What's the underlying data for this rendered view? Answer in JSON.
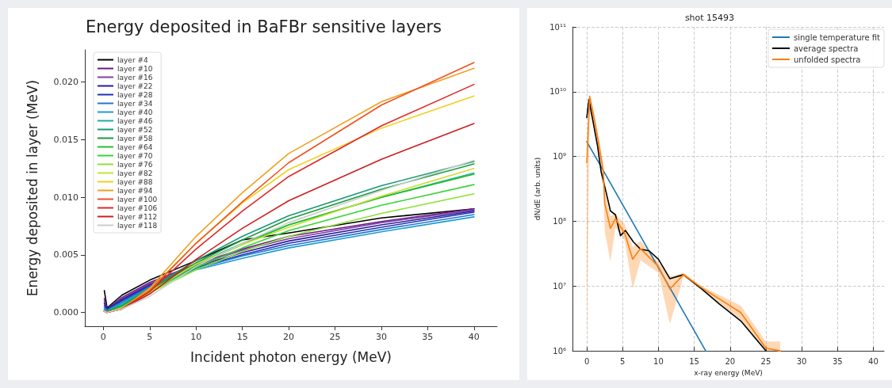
{
  "chart_data": [
    {
      "type": "line",
      "title": "Energy deposited in BaFBr sensitive layers",
      "xlabel": "Incident photon energy (MeV)",
      "ylabel": "Energy deposited in layer (MeV)",
      "legend": "top left",
      "marker": "none",
      "xlim": [
        -2,
        42.5
      ],
      "xticks": [
        0,
        5,
        10,
        15,
        20,
        25,
        30,
        35,
        40
      ],
      "ylim": [
        -0.0012,
        0.0228
      ],
      "yticks": [
        {
          "value": 0,
          "label": "0.000"
        },
        {
          "value": 0.005,
          "label": "0.005"
        },
        {
          "value": 0.01,
          "label": "0.010"
        },
        {
          "value": 0.015,
          "label": "0.015"
        },
        {
          "value": 0.02,
          "label": "0.020"
        }
      ],
      "x": [
        0.1,
        0.4,
        2,
        5,
        10,
        15,
        20,
        30,
        40
      ],
      "series": [
        {
          "name": "layer #4",
          "color": "#000000",
          "values": [
            0.0019,
            0.0004,
            0.0015,
            0.0028,
            0.0045,
            0.0063,
            0.0069,
            0.0082,
            0.009
          ]
        },
        {
          "name": "layer #10",
          "color": "#6a1b86",
          "values": [
            0.0012,
            0.0003,
            0.0013,
            0.0026,
            0.0042,
            0.0055,
            0.0066,
            0.0079,
            0.009
          ]
        },
        {
          "name": "layer #16",
          "color": "#8040a8",
          "values": [
            0.001,
            0.0003,
            0.0012,
            0.0025,
            0.0041,
            0.0054,
            0.0064,
            0.0078,
            0.0089
          ]
        },
        {
          "name": "layer #22",
          "color": "#2a1c98",
          "values": [
            0.0008,
            0.0003,
            0.0011,
            0.0024,
            0.004,
            0.0052,
            0.0062,
            0.0076,
            0.0088
          ]
        },
        {
          "name": "layer #28",
          "color": "#2232b4",
          "values": [
            0.0006,
            0.0002,
            0.001,
            0.0023,
            0.0039,
            0.005,
            0.006,
            0.0074,
            0.0087
          ]
        },
        {
          "name": "layer #34",
          "color": "#1f78cc",
          "values": [
            0.0004,
            0.0002,
            0.0009,
            0.0022,
            0.0038,
            0.0049,
            0.0058,
            0.0072,
            0.0085
          ]
        },
        {
          "name": "layer #40",
          "color": "#1e9ad6",
          "values": [
            0.0003,
            0.0001,
            0.0008,
            0.0021,
            0.0037,
            0.0047,
            0.0056,
            0.007,
            0.0083
          ]
        },
        {
          "name": "layer #46",
          "color": "#1fae9e",
          "values": [
            0.0002,
            0.0001,
            0.0007,
            0.0021,
            0.0042,
            0.006,
            0.0076,
            0.01,
            0.0121
          ]
        },
        {
          "name": "layer #52",
          "color": "#179a78",
          "values": [
            0.0001,
            0.0001,
            0.0006,
            0.0021,
            0.0045,
            0.0066,
            0.0084,
            0.011,
            0.0131
          ]
        },
        {
          "name": "layer #58",
          "color": "#1a9a38",
          "values": [
            0.0001,
            0.0001,
            0.0005,
            0.002,
            0.0043,
            0.0063,
            0.0081,
            0.0107,
            0.0129
          ]
        },
        {
          "name": "layer #64",
          "color": "#22c02a",
          "values": [
            0.0001,
            0,
            0.0005,
            0.0019,
            0.0041,
            0.0059,
            0.0076,
            0.01,
            0.012
          ]
        },
        {
          "name": "layer #70",
          "color": "#36d436",
          "values": [
            0.0001,
            0,
            0.0004,
            0.0018,
            0.0039,
            0.0056,
            0.0071,
            0.0093,
            0.0111
          ]
        },
        {
          "name": "layer #76",
          "color": "#8ee03a",
          "values": [
            0.0001,
            0,
            0.0004,
            0.0017,
            0.0037,
            0.0053,
            0.0066,
            0.0086,
            0.0103
          ]
        },
        {
          "name": "layer #82",
          "color": "#c8e030",
          "values": [
            0.0001,
            0,
            0.0004,
            0.0018,
            0.0042,
            0.0059,
            0.0074,
            0.0101,
            0.0125
          ]
        },
        {
          "name": "layer #88",
          "color": "#f0d020",
          "values": [
            0.0001,
            0,
            0.0003,
            0.002,
            0.006,
            0.0095,
            0.0124,
            0.016,
            0.0188
          ]
        },
        {
          "name": "layer #94",
          "color": "#f0a020",
          "values": [
            0.0001,
            0,
            0.0003,
            0.0021,
            0.0066,
            0.0104,
            0.0138,
            0.0183,
            0.0212
          ]
        },
        {
          "name": "layer #100",
          "color": "#f05020",
          "values": [
            0.0001,
            0,
            0.0003,
            0.0019,
            0.006,
            0.0096,
            0.013,
            0.018,
            0.0217
          ]
        },
        {
          "name": "layer #106",
          "color": "#e02828",
          "values": [
            0.0001,
            0,
            0.0003,
            0.0018,
            0.0055,
            0.0088,
            0.0118,
            0.0162,
            0.0198
          ]
        },
        {
          "name": "layer #112",
          "color": "#cc1f1f",
          "values": [
            0.0001,
            0,
            0.0003,
            0.0016,
            0.0046,
            0.0073,
            0.0097,
            0.0133,
            0.0164
          ]
        },
        {
          "name": "layer #118",
          "color": "#cccccc",
          "values": [
            0.0001,
            0,
            0.0003,
            0.0014,
            0.004,
            0.006,
            0.0078,
            0.0106,
            0.0132
          ]
        }
      ]
    },
    {
      "type": "line",
      "title": "shot 15493",
      "xlabel": "x-ray energy (MeV)",
      "ylabel": "dN/dE (arb. units)",
      "legend": "top right",
      "marker": "none",
      "log": "y",
      "grid": true,
      "xlim": [
        -2,
        41.5
      ],
      "xticks": [
        0,
        5,
        10,
        15,
        20,
        25,
        30,
        35,
        40
      ],
      "ylim": [
        1000000,
        100000000000
      ],
      "yticks": [
        {
          "value": 1000000,
          "label": "10⁶"
        },
        {
          "value": 10000000,
          "label": "10⁷"
        },
        {
          "value": 100000000,
          "label": "10⁸"
        },
        {
          "value": 1000000000,
          "label": "10⁹"
        },
        {
          "value": 10000000000,
          "label": "10¹⁰"
        },
        {
          "value": 100000000000,
          "label": "10¹¹"
        }
      ],
      "series": [
        {
          "name": "single temperature fit",
          "color": "#1f77b4",
          "x": [
            0,
            16.6
          ],
          "values": [
            1700000000,
            1000000
          ]
        },
        {
          "name": "average spectra",
          "color": "#000000",
          "x": [
            0,
            0.3,
            1.5,
            2,
            2.7,
            3.3,
            4,
            4.7,
            5.4,
            6.5,
            7.5,
            8.7,
            10,
            11.6,
            13.5,
            16,
            18.5,
            21.5,
            25
          ],
          "values": [
            4000000000,
            7600000000,
            1450000000,
            580000000,
            280000000,
            145000000,
            126000000,
            60000000,
            72000000,
            48000000,
            37000000,
            35000000,
            26000000,
            13000000,
            15000000,
            9100000,
            5300000,
            2900000,
            1000000
          ]
        },
        {
          "name": "unfolded spectra",
          "color": "#ff7f0e",
          "x": [
            0,
            0.4,
            1,
            1.5,
            2.3,
            2.5,
            3.3,
            4,
            5.3,
            6.4,
            7.5,
            10,
            11.6,
            13.5,
            16,
            21.5,
            25,
            27
          ],
          "values": [
            800000000,
            8500000000,
            4000000000,
            2000000000,
            600000000,
            190000000,
            78000000,
            110000000,
            65000000,
            26000000,
            38000000,
            20000000,
            9000000,
            15000000,
            9500000,
            3900000,
            1100000,
            1000000
          ],
          "lower": [
            1000000,
            5000000000,
            3000000000,
            1500000000,
            400000000,
            70000000,
            24000000,
            80000000,
            50000000,
            9000000,
            25000000,
            16000000,
            2600000,
            14000000,
            9000000,
            3000000,
            1000000,
            1000000
          ],
          "upper": [
            900000000,
            9500000000,
            5000000000,
            2500000000,
            800000000,
            300000000,
            120000000,
            130000000,
            90000000,
            40000000,
            50000000,
            23000000,
            14000000,
            16000000,
            10000000,
            5000000,
            1400000,
            1400000
          ]
        }
      ]
    }
  ]
}
